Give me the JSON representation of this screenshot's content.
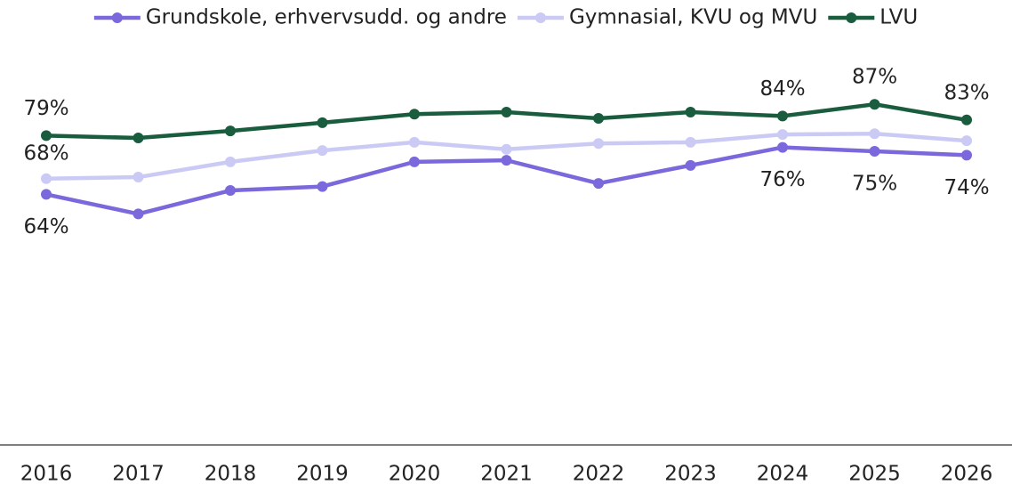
{
  "chart_data": {
    "type": "line",
    "categories": [
      "2016",
      "2017",
      "2018",
      "2019",
      "2020",
      "2021",
      "2022",
      "2023",
      "2024",
      "2025",
      "2026"
    ],
    "series": [
      {
        "name": "Grundskole, erhvervsudd. og andre",
        "color": "#7b68dc",
        "values": [
          64,
          59,
          65,
          66,
          72.3,
          72.7,
          66.8,
          71.4,
          76,
          75,
          74
        ],
        "value_labels": [
          "64%",
          null,
          null,
          null,
          null,
          null,
          null,
          null,
          "76%",
          "75%",
          "74%"
        ]
      },
      {
        "name": "Gymnasial, KVU og MVU",
        "color": "#cbcaf5",
        "values": [
          68,
          68.4,
          72.3,
          75.2,
          77.3,
          75.5,
          77,
          77.3,
          79.3,
          79.5,
          77.7
        ],
        "value_labels": [
          "68%",
          null,
          null,
          null,
          null,
          null,
          null,
          null,
          null,
          null,
          null
        ]
      },
      {
        "name": "LVU",
        "color": "#1a5c3e",
        "values": [
          79,
          78.4,
          80.2,
          82.3,
          84.5,
          85,
          83.4,
          85,
          84,
          87,
          83
        ],
        "value_labels": [
          "79%",
          null,
          null,
          null,
          null,
          null,
          null,
          null,
          "84%",
          "87%",
          "83%"
        ]
      }
    ],
    "ylim": [
      0,
      100
    ],
    "legend": "top"
  }
}
